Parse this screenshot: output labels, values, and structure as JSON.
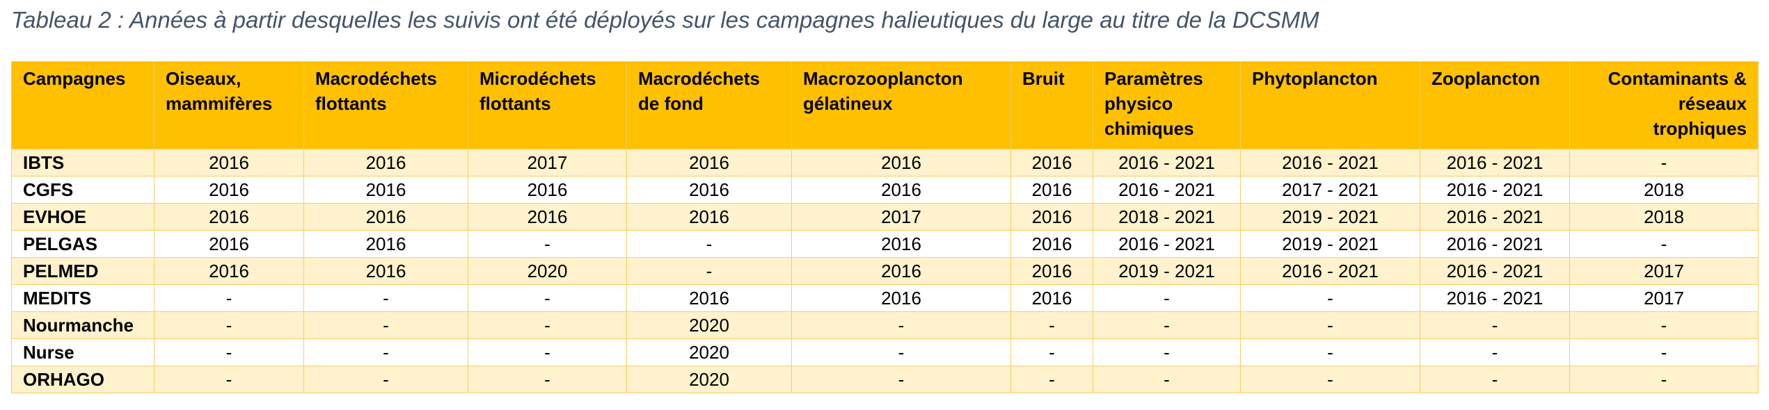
{
  "caption": "Tableau 2 : Années à partir desquelles les suivis ont été déployés sur les campagnes halieutiques du large au titre de la DCSMM",
  "table": {
    "headers": [
      "Campagnes",
      "Oiseaux, mammifères",
      "Macrodéchets flottants",
      "Microdéchets flottants",
      "Macrodéchets de fond",
      "Macrozooplancton gélatineux",
      "Bruit",
      "Paramètres physico chimiques",
      "Phytoplancton",
      "Zooplancton",
      "Contaminants & réseaux trophiques"
    ],
    "rows": [
      [
        "IBTS",
        "2016",
        "2016",
        "2017",
        "2016",
        "2016",
        "2016",
        "2016 - 2021",
        "2016 - 2021",
        "2016 - 2021",
        "-"
      ],
      [
        "CGFS",
        "2016",
        "2016",
        "2016",
        "2016",
        "2016",
        "2016",
        "2016 - 2021",
        "2017 - 2021",
        "2016 - 2021",
        "2018"
      ],
      [
        "EVHOE",
        "2016",
        "2016",
        "2016",
        "2016",
        "2017",
        "2016",
        "2018 - 2021",
        "2019 - 2021",
        "2016 - 2021",
        "2018"
      ],
      [
        "PELGAS",
        "2016",
        "2016",
        "-",
        "-",
        "2016",
        "2016",
        "2016 - 2021",
        "2019 - 2021",
        "2016 - 2021",
        "-"
      ],
      [
        "PELMED",
        "2016",
        "2016",
        "2020",
        "-",
        "2016",
        "2016",
        "2019 - 2021",
        "2016 - 2021",
        "2016 - 2021",
        "2017"
      ],
      [
        "MEDITS",
        "-",
        "-",
        "-",
        "2016",
        "2016",
        "2016",
        "-",
        "-",
        "2016 - 2021",
        "2017"
      ],
      [
        "Nourmanche",
        "-",
        "-",
        "-",
        "2020",
        "-",
        "-",
        "-",
        "-",
        "-",
        "-"
      ],
      [
        "Nurse",
        "-",
        "-",
        "-",
        "2020",
        "-",
        "-",
        "-",
        "-",
        "-",
        "-"
      ],
      [
        "ORHAGO",
        "-",
        "-",
        "-",
        "2020",
        "-",
        "-",
        "-",
        "-",
        "-",
        "-"
      ]
    ]
  }
}
